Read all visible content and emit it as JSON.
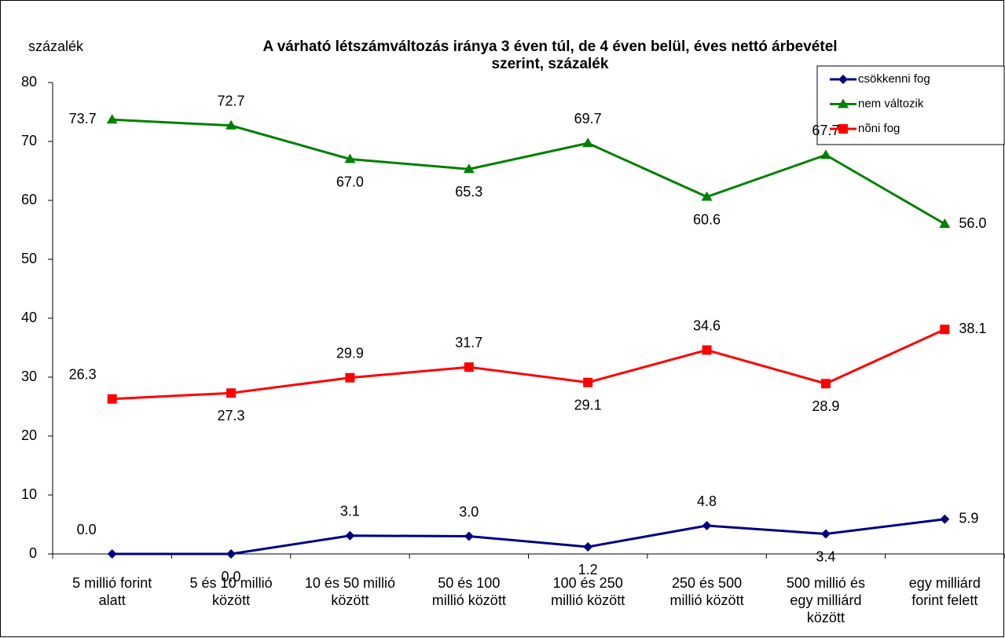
{
  "chart_data": {
    "type": "line",
    "title": "A várható létszámváltozás iránya 3 éven túl, de 4 éven belül, éves nettó árbevétel\nszerint, százalék",
    "y_axis_label": "százalék",
    "categories": [
      "5 millió forint\nalatt",
      "5 és 10 millió\nközött",
      "10 és 50 millió\nközött",
      "50 és 100\nmillió között",
      "100 és 250\nmillió között",
      "250 és 500\nmillió között",
      "500 millió és\negy milliárd\nközött",
      "egy milliárd\nforint felett"
    ],
    "series": [
      {
        "name": "csökkenni fog",
        "color": "#000080",
        "marker": "diamond",
        "values": [
          0.0,
          0.0,
          3.1,
          3.0,
          1.2,
          4.8,
          3.4,
          5.9
        ],
        "value_labels": [
          "0.0",
          "0.0",
          "3.1",
          "3.0",
          "1.2",
          "4.8",
          "3.4",
          "5.9"
        ]
      },
      {
        "name": "nem változik",
        "color": "#008000",
        "marker": "triangle",
        "values": [
          73.7,
          72.7,
          67.0,
          65.3,
          69.7,
          60.6,
          67.7,
          56.0
        ],
        "value_labels": [
          "73.7",
          "72.7",
          "67.0",
          "65.3",
          "69.7",
          "60.6",
          "67.7",
          "56.0"
        ]
      },
      {
        "name": "nõni fog",
        "color": "#ff0000",
        "marker": "square",
        "values": [
          26.3,
          27.3,
          29.9,
          31.7,
          29.1,
          34.6,
          28.9,
          38.1
        ],
        "value_labels": [
          "26.3",
          "27.3",
          "29.9",
          "31.7",
          "29.1",
          "34.6",
          "28.9",
          "38.1"
        ]
      }
    ],
    "ylim": [
      0,
      80
    ],
    "yticks": [
      0,
      10,
      20,
      30,
      40,
      50,
      60,
      70,
      80
    ],
    "grid": false,
    "legend": "upper right"
  }
}
